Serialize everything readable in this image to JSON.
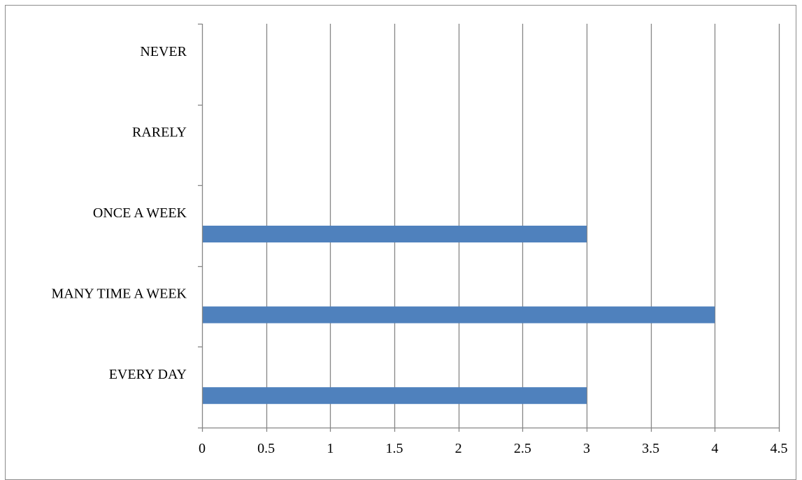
{
  "chart_data": {
    "type": "bar",
    "orientation": "horizontal",
    "categories": [
      "EVERY DAY",
      "MANY TIME A WEEK",
      "ONCE A WEEK",
      "RARELY",
      "NEVER"
    ],
    "values": [
      3,
      4,
      3,
      0,
      0
    ],
    "xlim": [
      0,
      4.5
    ],
    "xticks": [
      "0",
      "0.5",
      "1",
      "1.5",
      "2",
      "2.5",
      "3",
      "3.5",
      "4",
      "4.5"
    ],
    "title": "",
    "xlabel": "",
    "ylabel": "",
    "grid": "vertical",
    "legend": "none",
    "bar_color": "#4f81bd",
    "grid_color": "#868686"
  }
}
